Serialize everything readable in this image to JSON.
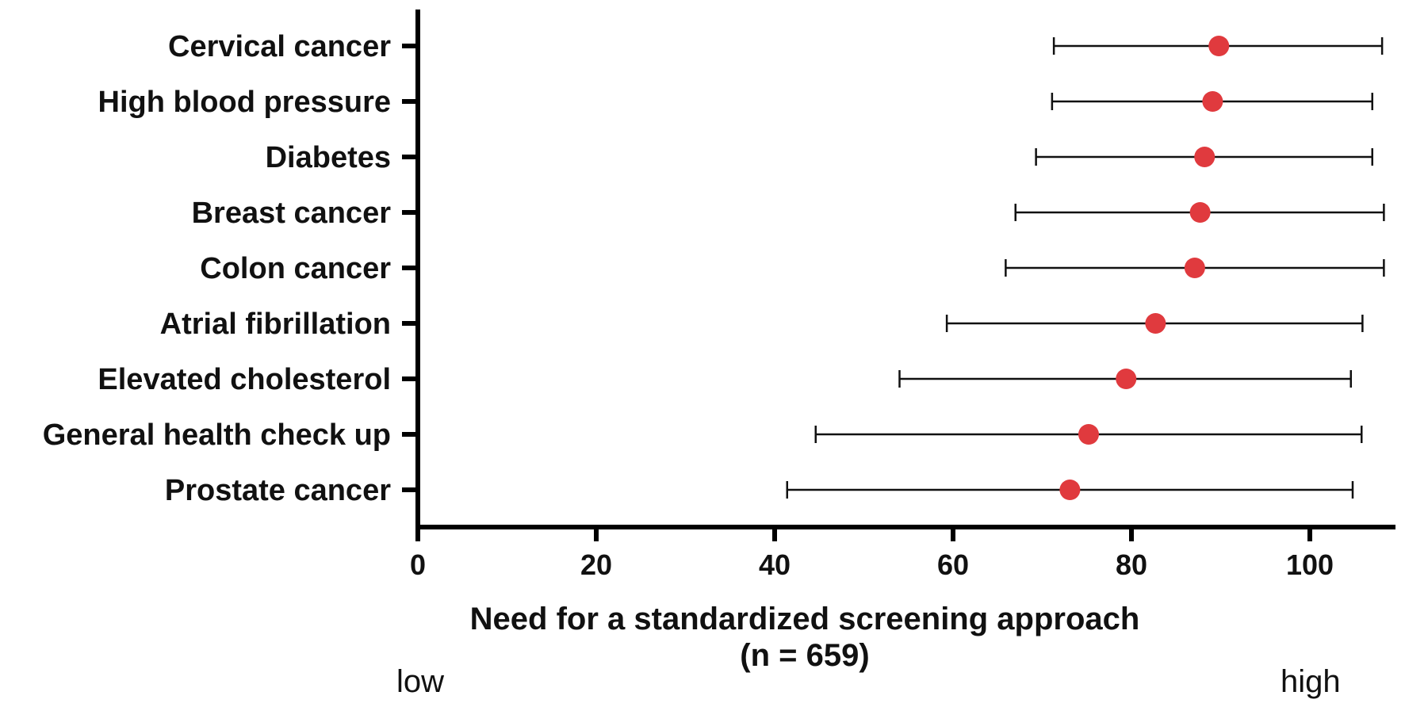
{
  "chart_data": {
    "type": "scatter",
    "orientation": "horizontal",
    "categories": [
      "Cervical cancer",
      "High blood pressure",
      "Diabetes",
      "Breast cancer",
      "Colon cancer",
      "Atrial fibrillation",
      "Elevated cholesterol",
      "General health check up",
      "Prostate cancer"
    ],
    "values": [
      89.8,
      89.1,
      88.2,
      87.7,
      87.1,
      82.7,
      79.4,
      75.2,
      73.1
    ],
    "error_low": [
      71.3,
      71.1,
      69.3,
      67.0,
      65.9,
      59.3,
      54.0,
      44.6,
      41.4
    ],
    "error_high": [
      108.1,
      107.0,
      107.0,
      108.3,
      108.3,
      105.9,
      104.6,
      105.8,
      104.8
    ],
    "xticks": [
      "0",
      "20",
      "40",
      "60",
      "80",
      "100"
    ],
    "xlim": [
      0,
      110
    ],
    "xlabel": "Need for a standardized screening approach",
    "xlabel_sub": "(n = 659)",
    "x_end_low": "low",
    "x_end_high": "high",
    "marker_color": "#e03a3e",
    "errorbar_color": "#111111",
    "grid": false
  }
}
